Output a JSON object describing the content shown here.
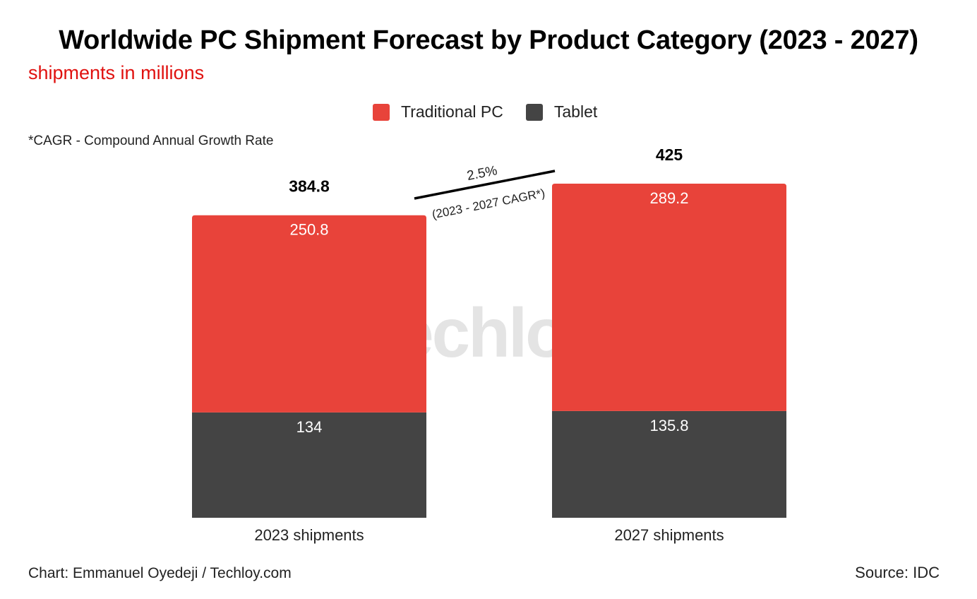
{
  "title": "Worldwide PC Shipment Forecast by Product Category (2023 - 2027)",
  "subtitle": "shipments in millions",
  "note": "*CAGR - Compound Annual Growth Rate",
  "footer": {
    "credit": "Chart: Emmanuel Oyedeji / Techloy.com",
    "source": "Source: IDC"
  },
  "watermark": "Techloy.",
  "colors": {
    "traditional_pc": "#e8433a",
    "tablet": "#444444",
    "subtitle": "#e0110f",
    "watermark": "#3a3a3a"
  },
  "chart_data": {
    "type": "bar",
    "stacked": true,
    "categories": [
      "2023 shipments",
      "2027 shipments"
    ],
    "series": [
      {
        "name": "Tablet",
        "values": [
          134,
          135.8
        ],
        "value_labels": [
          "134",
          "135.8"
        ]
      },
      {
        "name": "Traditional PC",
        "values": [
          250.8,
          289.2
        ],
        "value_labels": [
          "250.8",
          "289.2"
        ]
      }
    ],
    "totals": [
      384.8,
      425
    ],
    "total_labels": [
      "384.8",
      "425"
    ],
    "legend": [
      "Traditional PC",
      "Tablet"
    ],
    "annotation": {
      "value": "2.5%",
      "label": "(2023 - 2027 CAGR*)"
    },
    "title": "Worldwide PC Shipment Forecast by Product Category (2023 - 2027)",
    "xlabel": "",
    "ylabel": "shipments in millions",
    "ylim": [
      0,
      425
    ],
    "grid": false,
    "legend_position": "top-center"
  }
}
